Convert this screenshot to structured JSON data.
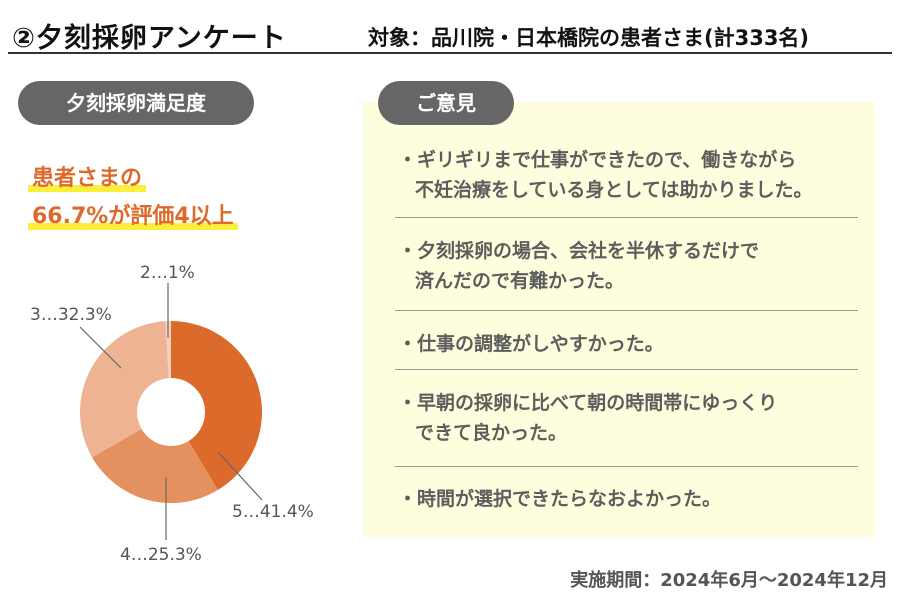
{
  "header": {
    "title": "②夕刻採卵アンケート",
    "subtitle": "対象：品川院・日本橋院の患者さま(計333名)"
  },
  "left": {
    "section_label": "夕刻採卵満足度",
    "highlight_line1": "患者さまの",
    "highlight_line2": "66.7%が評価4以上"
  },
  "right": {
    "section_label": "ご意見",
    "comments": [
      {
        "lines": [
          "・ギリギリまで仕事ができたので、働きながら",
          "不妊治療をしている身としては助かりました。"
        ]
      },
      {
        "lines": [
          "・夕刻採卵の場合、会社を半休するだけで",
          "済んだので有難かった。"
        ]
      },
      {
        "lines": [
          "・仕事の調整がしやすかった。"
        ]
      },
      {
        "lines": [
          "・早朝の採卵に比べて朝の時間帯にゆっくり",
          "できて良かった。"
        ]
      },
      {
        "lines": [
          "・時間が選択できたらなおよかった。"
        ]
      }
    ]
  },
  "footer": "実施期間：2024年6月～2024年12月",
  "chart_data": {
    "type": "pie",
    "donut": true,
    "title": "夕刻採卵満足度",
    "categories": [
      "5",
      "4",
      "3",
      "2"
    ],
    "values": [
      41.4,
      25.3,
      32.3,
      1
    ],
    "labels": [
      "5…41.4%",
      "4…25.3%",
      "3…32.3%",
      "2…1%"
    ],
    "colors": [
      "#dc6a2b",
      "#e4915f",
      "#eeb393",
      "#f3d2c0"
    ],
    "start": "top",
    "direction": "clockwise"
  }
}
